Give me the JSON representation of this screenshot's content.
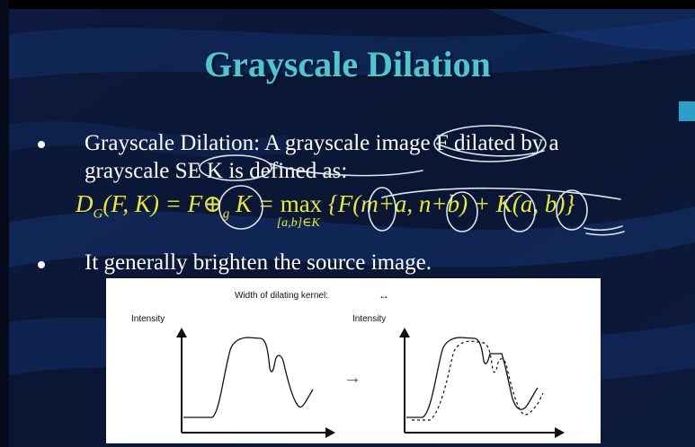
{
  "slide": {
    "title": "Grayscale Dilation",
    "bullets": [
      {
        "line1": "Grayscale Dilation:  A grayscale image F dilated by a",
        "line2": "grayscale SE K is defined as:"
      },
      {
        "line1": "It generally brighten the source image."
      }
    ],
    "formula": {
      "lhs_D": "D",
      "lhs_sub": "G",
      "lhs_args": "(F, K)",
      "eq1": " = F",
      "op": "⊕",
      "op_sub": "g",
      "rhs_K": " K = ",
      "max": "max",
      "max_sub": "[a,b]∈K",
      "body": "{F(m+a, n+b) + K(a, b)}"
    }
  },
  "figure": {
    "kernel_label": "Width of dilating kernel:",
    "kernel_arrow": "↔",
    "left_ylabel": "Intensity",
    "right_ylabel": "Intensity",
    "transform_arrow": "→"
  },
  "colors": {
    "background": "#0b1430",
    "title": "#4fc7cf",
    "formula": "#e8e83a",
    "text": "#ffffff",
    "annotation_ink": "#dfe6ee"
  }
}
